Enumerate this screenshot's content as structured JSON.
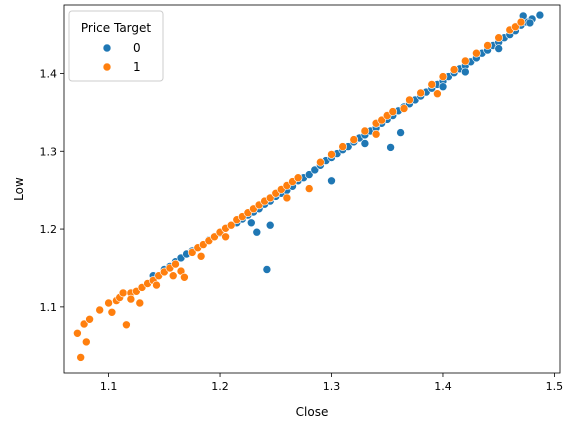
{
  "chart_data": {
    "type": "scatter",
    "title": "",
    "xlabel": "Close",
    "ylabel": "Low",
    "xlim": [
      1.06,
      1.505
    ],
    "ylim": [
      1.015,
      1.488
    ],
    "xticks": [
      1.1,
      1.2,
      1.3,
      1.4,
      1.5
    ],
    "yticks": [
      1.1,
      1.2,
      1.3,
      1.4
    ],
    "grid": false,
    "legend": {
      "title": "Price Target",
      "placement": "top-left",
      "entries": [
        "0",
        "1"
      ]
    },
    "series": [
      {
        "name": "0",
        "color": "#1f77b4",
        "points": [
          [
            1.14,
            1.14
          ],
          [
            1.15,
            1.148
          ],
          [
            1.155,
            1.152
          ],
          [
            1.16,
            1.158
          ],
          [
            1.165,
            1.163
          ],
          [
            1.17,
            1.168
          ],
          [
            1.175,
            1.172
          ],
          [
            1.19,
            1.186
          ],
          [
            1.2,
            1.195
          ],
          [
            1.21,
            1.205
          ],
          [
            1.215,
            1.208
          ],
          [
            1.22,
            1.213
          ],
          [
            1.225,
            1.218
          ],
          [
            1.23,
            1.222
          ],
          [
            1.235,
            1.226
          ],
          [
            1.24,
            1.232
          ],
          [
            1.245,
            1.236
          ],
          [
            1.25,
            1.242
          ],
          [
            1.255,
            1.246
          ],
          [
            1.26,
            1.25
          ],
          [
            1.265,
            1.255
          ],
          [
            1.27,
            1.262
          ],
          [
            1.275,
            1.266
          ],
          [
            1.28,
            1.27
          ],
          [
            1.285,
            1.276
          ],
          [
            1.29,
            1.282
          ],
          [
            1.295,
            1.288
          ],
          [
            1.3,
            1.292
          ],
          [
            1.305,
            1.297
          ],
          [
            1.31,
            1.302
          ],
          [
            1.315,
            1.306
          ],
          [
            1.32,
            1.312
          ],
          [
            1.325,
            1.317
          ],
          [
            1.33,
            1.321
          ],
          [
            1.335,
            1.326
          ],
          [
            1.34,
            1.33
          ],
          [
            1.345,
            1.336
          ],
          [
            1.35,
            1.341
          ],
          [
            1.355,
            1.346
          ],
          [
            1.36,
            1.352
          ],
          [
            1.365,
            1.357
          ],
          [
            1.37,
            1.361
          ],
          [
            1.375,
            1.366
          ],
          [
            1.38,
            1.371
          ],
          [
            1.385,
            1.376
          ],
          [
            1.39,
            1.381
          ],
          [
            1.395,
            1.386
          ],
          [
            1.4,
            1.39
          ],
          [
            1.405,
            1.396
          ],
          [
            1.41,
            1.401
          ],
          [
            1.415,
            1.406
          ],
          [
            1.42,
            1.41
          ],
          [
            1.425,
            1.415
          ],
          [
            1.43,
            1.42
          ],
          [
            1.435,
            1.426
          ],
          [
            1.44,
            1.43
          ],
          [
            1.445,
            1.436
          ],
          [
            1.45,
            1.44
          ],
          [
            1.455,
            1.446
          ],
          [
            1.46,
            1.45
          ],
          [
            1.465,
            1.455
          ],
          [
            1.47,
            1.462
          ],
          [
            1.475,
            1.466
          ],
          [
            1.48,
            1.47
          ],
          [
            1.487,
            1.475
          ],
          [
            1.478,
            1.465
          ],
          [
            1.472,
            1.474
          ],
          [
            1.242,
            1.148
          ],
          [
            1.233,
            1.196
          ],
          [
            1.245,
            1.205
          ],
          [
            1.3,
            1.262
          ],
          [
            1.353,
            1.305
          ],
          [
            1.362,
            1.324
          ],
          [
            1.228,
            1.208
          ],
          [
            1.33,
            1.31
          ],
          [
            1.4,
            1.383
          ],
          [
            1.42,
            1.402
          ],
          [
            1.45,
            1.432
          ]
        ]
      },
      {
        "name": "1",
        "color": "#ff7f0e",
        "points": [
          [
            1.072,
            1.066
          ],
          [
            1.075,
            1.035
          ],
          [
            1.078,
            1.078
          ],
          [
            1.08,
            1.055
          ],
          [
            1.083,
            1.084
          ],
          [
            1.092,
            1.096
          ],
          [
            1.1,
            1.105
          ],
          [
            1.103,
            1.093
          ],
          [
            1.107,
            1.108
          ],
          [
            1.11,
            1.112
          ],
          [
            1.113,
            1.118
          ],
          [
            1.116,
            1.077
          ],
          [
            1.12,
            1.118
          ],
          [
            1.125,
            1.12
          ],
          [
            1.128,
            1.105
          ],
          [
            1.13,
            1.125
          ],
          [
            1.135,
            1.13
          ],
          [
            1.14,
            1.134
          ],
          [
            1.143,
            1.128
          ],
          [
            1.145,
            1.14
          ],
          [
            1.15,
            1.145
          ],
          [
            1.155,
            1.15
          ],
          [
            1.16,
            1.155
          ],
          [
            1.165,
            1.146
          ],
          [
            1.168,
            1.138
          ],
          [
            1.175,
            1.17
          ],
          [
            1.18,
            1.176
          ],
          [
            1.183,
            1.165
          ],
          [
            1.185,
            1.18
          ],
          [
            1.19,
            1.185
          ],
          [
            1.195,
            1.19
          ],
          [
            1.2,
            1.196
          ],
          [
            1.205,
            1.201
          ],
          [
            1.21,
            1.205
          ],
          [
            1.215,
            1.212
          ],
          [
            1.22,
            1.216
          ],
          [
            1.225,
            1.221
          ],
          [
            1.23,
            1.226
          ],
          [
            1.235,
            1.231
          ],
          [
            1.24,
            1.236
          ],
          [
            1.245,
            1.24
          ],
          [
            1.25,
            1.246
          ],
          [
            1.255,
            1.251
          ],
          [
            1.26,
            1.256
          ],
          [
            1.265,
            1.261
          ],
          [
            1.27,
            1.266
          ],
          [
            1.28,
            1.252
          ],
          [
            1.29,
            1.286
          ],
          [
            1.3,
            1.296
          ],
          [
            1.31,
            1.306
          ],
          [
            1.32,
            1.315
          ],
          [
            1.33,
            1.326
          ],
          [
            1.34,
            1.336
          ],
          [
            1.345,
            1.34
          ],
          [
            1.35,
            1.346
          ],
          [
            1.355,
            1.351
          ],
          [
            1.365,
            1.355
          ],
          [
            1.37,
            1.366
          ],
          [
            1.38,
            1.375
          ],
          [
            1.39,
            1.386
          ],
          [
            1.4,
            1.396
          ],
          [
            1.41,
            1.405
          ],
          [
            1.42,
            1.416
          ],
          [
            1.43,
            1.426
          ],
          [
            1.44,
            1.436
          ],
          [
            1.45,
            1.446
          ],
          [
            1.46,
            1.456
          ],
          [
            1.465,
            1.46
          ],
          [
            1.47,
            1.466
          ],
          [
            1.158,
            1.14
          ],
          [
            1.12,
            1.11
          ],
          [
            1.205,
            1.19
          ],
          [
            1.26,
            1.24
          ],
          [
            1.34,
            1.322
          ],
          [
            1.395,
            1.374
          ]
        ]
      }
    ]
  }
}
